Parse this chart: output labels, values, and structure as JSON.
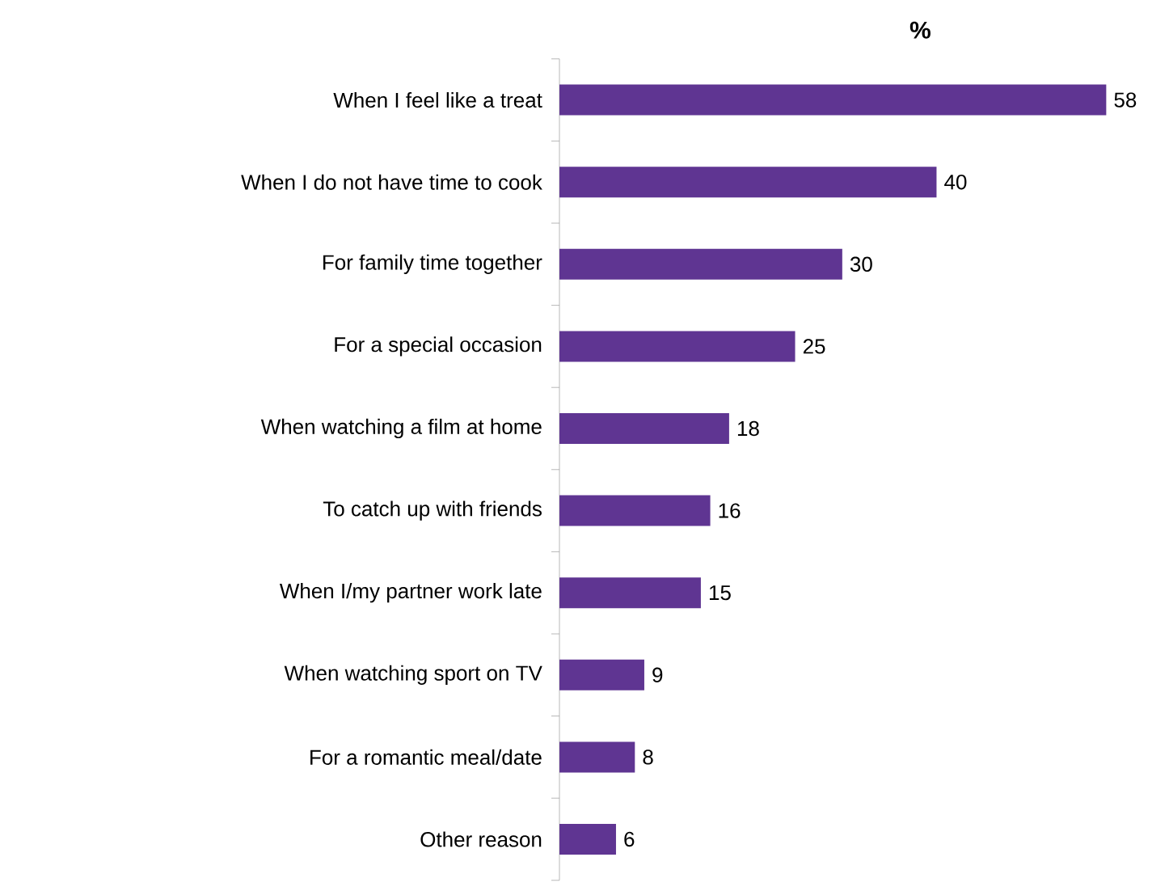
{
  "chart_data": {
    "type": "bar",
    "orientation": "horizontal",
    "title": "%",
    "categories": [
      "When I feel like a treat",
      "When I do not have time to cook",
      "For family time together",
      "For a special occasion",
      "When watching a film at home",
      "To catch up with friends",
      "When I/my partner work late",
      "When watching sport on TV",
      "For a romantic meal/date",
      "Other reason"
    ],
    "values": [
      58,
      40,
      30,
      25,
      18,
      16,
      15,
      9,
      8,
      6
    ],
    "color": "#5f3592",
    "data_labels": true
  }
}
